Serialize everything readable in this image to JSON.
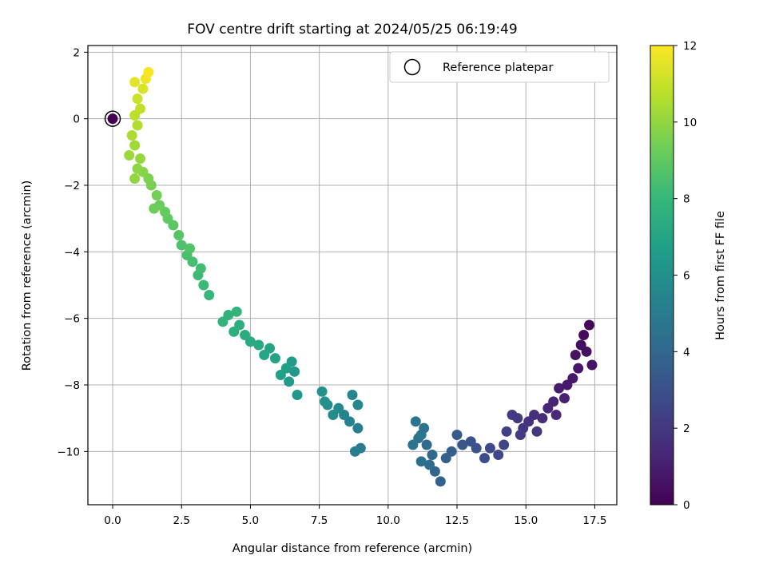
{
  "chart_data": {
    "type": "scatter",
    "title": "FOV centre drift starting at 2024/05/25 06:19:49",
    "xlabel": "Angular distance from reference (arcmin)",
    "ylabel": "Rotation from reference (arcmin)",
    "xlim": [
      -0.9,
      18.3
    ],
    "ylim": [
      -11.6,
      2.2
    ],
    "xticks": [
      "0.0",
      "2.5",
      "5.0",
      "7.5",
      "10.0",
      "12.5",
      "15.0",
      "17.5"
    ],
    "xtick_values": [
      0,
      2.5,
      5,
      7.5,
      10,
      12.5,
      15,
      17.5
    ],
    "yticks": [
      "−10",
      "−8",
      "−6",
      "−4",
      "−2",
      "0",
      "2"
    ],
    "ytick_values": [
      -10,
      -8,
      -6,
      -4,
      -2,
      0,
      2
    ],
    "grid": true,
    "legend": {
      "placement": "top-right",
      "entries": [
        "Reference platepar"
      ]
    },
    "reference_point": {
      "x": 0,
      "y": 0
    },
    "colorbar": {
      "label": "Hours from first FF file",
      "range": [
        0,
        12
      ],
      "ticks": [
        "0",
        "2",
        "4",
        "6",
        "8",
        "10",
        "12"
      ],
      "tick_values": [
        0,
        2,
        4,
        6,
        8,
        10,
        12
      ],
      "colormap": [
        "#440154",
        "#482878",
        "#3e4989",
        "#31688e",
        "#26828e",
        "#1f9e89",
        "#35b779",
        "#6ece58",
        "#b5de2b",
        "#fde725"
      ]
    },
    "series": [
      {
        "points": [
          [
            17.3,
            -6.2,
            0.2
          ],
          [
            17.1,
            -6.5,
            0.3
          ],
          [
            17.0,
            -6.8,
            0.4
          ],
          [
            17.2,
            -7.0,
            0.5
          ],
          [
            16.8,
            -7.1,
            0.6
          ],
          [
            17.4,
            -7.4,
            0.6
          ],
          [
            16.9,
            -7.5,
            0.7
          ],
          [
            16.7,
            -7.8,
            0.8
          ],
          [
            16.5,
            -8.0,
            0.9
          ],
          [
            16.2,
            -8.1,
            1.0
          ],
          [
            16.4,
            -8.4,
            1.1
          ],
          [
            16.0,
            -8.5,
            1.2
          ],
          [
            15.8,
            -8.7,
            1.3
          ],
          [
            16.1,
            -8.9,
            1.4
          ],
          [
            15.6,
            -9.0,
            1.5
          ],
          [
            15.3,
            -8.9,
            1.6
          ],
          [
            15.1,
            -9.1,
            1.7
          ],
          [
            14.9,
            -9.3,
            1.8
          ],
          [
            15.4,
            -9.4,
            1.9
          ],
          [
            14.7,
            -9.0,
            2.0
          ],
          [
            14.5,
            -8.9,
            2.1
          ],
          [
            14.8,
            -9.5,
            2.2
          ],
          [
            14.3,
            -9.4,
            2.3
          ],
          [
            14.2,
            -9.8,
            2.5
          ],
          [
            14.0,
            -10.1,
            2.6
          ],
          [
            13.7,
            -9.9,
            2.7
          ],
          [
            13.5,
            -10.2,
            2.9
          ],
          [
            13.2,
            -9.9,
            3.0
          ],
          [
            13.0,
            -9.7,
            3.1
          ],
          [
            12.7,
            -9.8,
            3.3
          ],
          [
            12.5,
            -9.5,
            3.4
          ],
          [
            12.3,
            -10.0,
            3.6
          ],
          [
            12.1,
            -10.2,
            3.7
          ],
          [
            11.9,
            -10.9,
            3.8
          ],
          [
            11.7,
            -10.6,
            3.9
          ],
          [
            11.6,
            -10.1,
            4.0
          ],
          [
            11.4,
            -9.8,
            4.1
          ],
          [
            11.5,
            -10.4,
            4.2
          ],
          [
            11.2,
            -10.3,
            4.3
          ],
          [
            11.1,
            -9.6,
            4.4
          ],
          [
            11.3,
            -9.3,
            4.5
          ],
          [
            11.0,
            -9.1,
            4.6
          ],
          [
            10.9,
            -9.8,
            4.7
          ],
          [
            11.2,
            -9.5,
            4.8
          ],
          [
            9.0,
            -9.9,
            5.0
          ],
          [
            8.9,
            -9.3,
            5.1
          ],
          [
            8.8,
            -10.0,
            5.2
          ],
          [
            8.6,
            -9.1,
            5.3
          ],
          [
            8.4,
            -8.9,
            5.4
          ],
          [
            8.7,
            -8.3,
            5.5
          ],
          [
            8.9,
            -8.6,
            5.6
          ],
          [
            8.2,
            -8.7,
            5.7
          ],
          [
            8.0,
            -8.9,
            5.8
          ],
          [
            7.8,
            -8.6,
            5.9
          ],
          [
            7.6,
            -8.2,
            6.0
          ],
          [
            7.7,
            -8.5,
            6.1
          ],
          [
            6.7,
            -8.3,
            6.3
          ],
          [
            6.6,
            -7.6,
            6.4
          ],
          [
            6.4,
            -7.9,
            6.5
          ],
          [
            6.5,
            -7.3,
            6.6
          ],
          [
            6.3,
            -7.5,
            6.7
          ],
          [
            6.1,
            -7.7,
            6.8
          ],
          [
            5.9,
            -7.2,
            6.9
          ],
          [
            5.7,
            -6.9,
            7.0
          ],
          [
            5.5,
            -7.1,
            7.1
          ],
          [
            5.3,
            -6.8,
            7.2
          ],
          [
            5.0,
            -6.7,
            7.3
          ],
          [
            4.8,
            -6.5,
            7.4
          ],
          [
            4.6,
            -6.2,
            7.5
          ],
          [
            4.4,
            -6.4,
            7.6
          ],
          [
            4.2,
            -5.9,
            7.7
          ],
          [
            4.0,
            -6.1,
            7.8
          ],
          [
            4.5,
            -5.8,
            7.9
          ],
          [
            3.5,
            -5.3,
            8.0
          ],
          [
            3.3,
            -5.0,
            8.1
          ],
          [
            3.1,
            -4.7,
            8.2
          ],
          [
            3.2,
            -4.5,
            8.3
          ],
          [
            2.9,
            -4.3,
            8.4
          ],
          [
            2.7,
            -4.1,
            8.5
          ],
          [
            2.5,
            -3.8,
            8.6
          ],
          [
            2.8,
            -3.9,
            8.7
          ],
          [
            2.4,
            -3.5,
            8.8
          ],
          [
            2.2,
            -3.2,
            8.9
          ],
          [
            2.0,
            -3.0,
            9.0
          ],
          [
            1.9,
            -2.8,
            9.1
          ],
          [
            1.7,
            -2.6,
            9.2
          ],
          [
            1.5,
            -2.7,
            9.3
          ],
          [
            1.6,
            -2.3,
            9.4
          ],
          [
            1.4,
            -2.0,
            9.5
          ],
          [
            1.3,
            -1.8,
            9.6
          ],
          [
            1.1,
            -1.6,
            9.8
          ],
          [
            0.9,
            -1.5,
            9.9
          ],
          [
            0.8,
            -1.8,
            10.0
          ],
          [
            1.0,
            -1.2,
            10.1
          ],
          [
            0.6,
            -1.1,
            10.2
          ],
          [
            0.8,
            -0.8,
            10.3
          ],
          [
            0.7,
            -0.5,
            10.5
          ],
          [
            0.9,
            -0.2,
            10.6
          ],
          [
            0.8,
            0.1,
            10.8
          ],
          [
            1.0,
            0.3,
            10.9
          ],
          [
            0.9,
            0.6,
            11.1
          ],
          [
            1.1,
            0.9,
            11.3
          ],
          [
            0.8,
            1.1,
            11.5
          ],
          [
            1.2,
            1.2,
            11.7
          ],
          [
            1.3,
            1.4,
            11.9
          ]
        ]
      }
    ]
  }
}
